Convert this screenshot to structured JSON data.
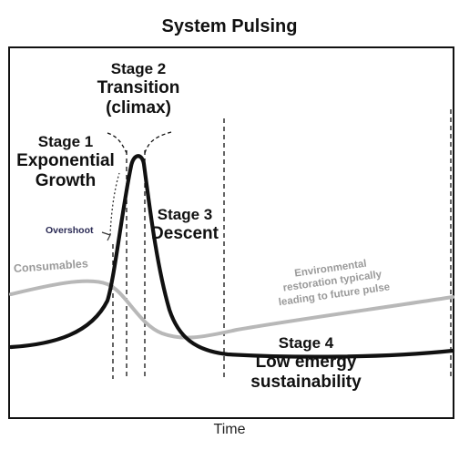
{
  "title": "System Pulsing",
  "x_axis_label": "Time",
  "stage2": {
    "line1": "Stage 2",
    "line2": "Transition",
    "line3": "(climax)"
  },
  "stage1": {
    "line1": "Stage 1",
    "line2": "Exponential",
    "line3": "Growth"
  },
  "stage3": {
    "line1": "Stage 3",
    "line2": "Descent"
  },
  "stage4": {
    "line1": "Stage 4",
    "line2": "Low emergy",
    "line3": "sustainability"
  },
  "overshoot_label": "Overshoot",
  "consumables_label": "Consumables",
  "environmental_note": {
    "line1": "Environmental",
    "line2": "restoration typically",
    "line3": "leading to future pulse"
  },
  "colors": {
    "pulse_curve": "#111111",
    "consumables_curve": "#b8b8b8",
    "frame": "#111111",
    "dashed": "#111111",
    "overshoot_text": "#2b2b55",
    "note_text": "#9a9a9a"
  }
}
